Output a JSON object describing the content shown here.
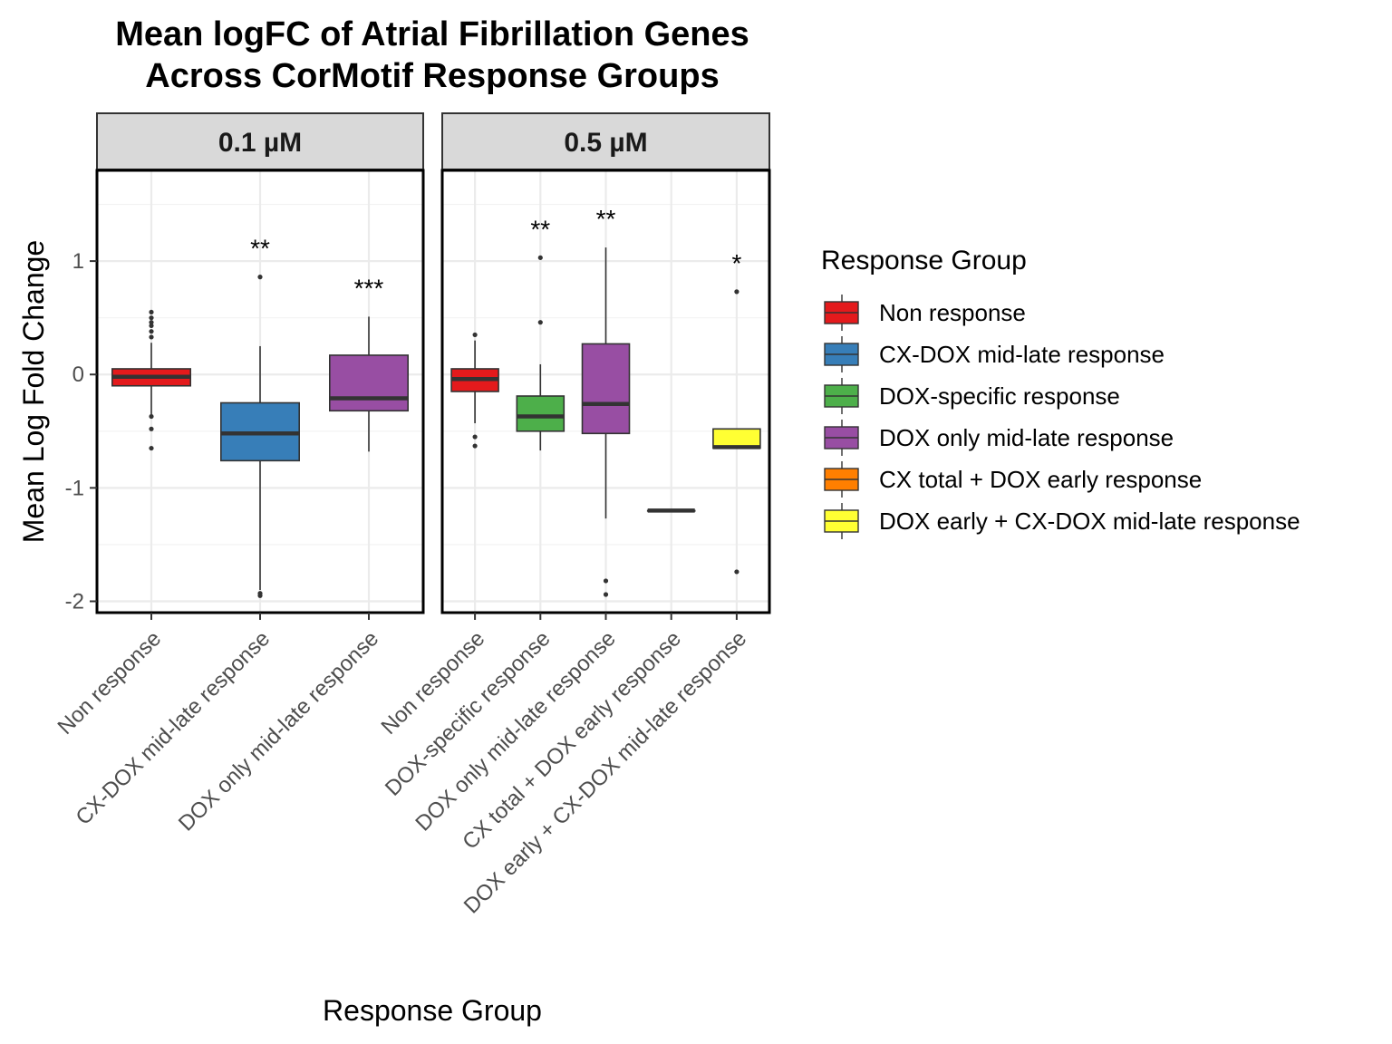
{
  "chart_data": {
    "type": "box",
    "title": "Mean logFC of Atrial Fibrillation Genes\nAcross CorMotif Response Groups",
    "xlabel": "Response Group",
    "ylabel": "Mean Log Fold Change",
    "ylim": [
      -2.1,
      1.8
    ],
    "y_ticks": [
      -2,
      -1,
      0,
      1
    ],
    "grid": true,
    "legend": {
      "title": "Response Group",
      "position": "right",
      "entries": [
        {
          "label": "Non response",
          "color": "#E41A1C"
        },
        {
          "label": "CX-DOX mid-late response",
          "color": "#377EB8"
        },
        {
          "label": "DOX-specific response",
          "color": "#4DAF4A"
        },
        {
          "label": "DOX only mid-late response",
          "color": "#984EA3"
        },
        {
          "label": "CX total + DOX early response",
          "color": "#FF7F00"
        },
        {
          "label": "DOX early + CX-DOX mid-late response",
          "color": "#FFFF33"
        }
      ]
    },
    "facets": [
      {
        "label": "0.1 µM",
        "categories": [
          "Non response",
          "CX-DOX mid-late response",
          "DOX only mid-late response"
        ],
        "boxes": [
          {
            "group": "Non response",
            "color": "#E41A1C",
            "q1": -0.1,
            "median": -0.02,
            "q3": 0.05,
            "whisker_low": -0.35,
            "whisker_high": 0.28,
            "outliers": [
              0.55,
              0.5,
              0.46,
              0.43,
              0.38,
              0.33,
              -0.37,
              -0.48,
              -0.65
            ],
            "sig": ""
          },
          {
            "group": "CX-DOX mid-late response",
            "color": "#377EB8",
            "q1": -0.76,
            "median": -0.52,
            "q3": -0.25,
            "whisker_low": -1.9,
            "whisker_high": 0.25,
            "outliers": [
              0.86,
              -1.93,
              -1.95
            ],
            "sig": "**"
          },
          {
            "group": "DOX only mid-late response",
            "color": "#984EA3",
            "q1": -0.32,
            "median": -0.21,
            "q3": 0.17,
            "whisker_low": -0.68,
            "whisker_high": 0.51,
            "outliers": [],
            "sig": "***"
          }
        ]
      },
      {
        "label": "0.5 µM",
        "categories": [
          "Non response",
          "DOX-specific response",
          "DOX only mid-late response",
          "CX total + DOX early response",
          "DOX early + CX-DOX mid-late response"
        ],
        "boxes": [
          {
            "group": "Non response",
            "color": "#E41A1C",
            "q1": -0.15,
            "median": -0.04,
            "q3": 0.05,
            "whisker_low": -0.43,
            "whisker_high": 0.3,
            "outliers": [
              0.35,
              -0.55,
              -0.63
            ],
            "sig": ""
          },
          {
            "group": "DOX-specific response",
            "color": "#4DAF4A",
            "q1": -0.5,
            "median": -0.37,
            "q3": -0.19,
            "whisker_low": -0.67,
            "whisker_high": 0.09,
            "outliers": [
              1.03,
              0.46
            ],
            "sig": "**"
          },
          {
            "group": "DOX only mid-late response",
            "color": "#984EA3",
            "q1": -0.52,
            "median": -0.26,
            "q3": 0.27,
            "whisker_low": -1.27,
            "whisker_high": 1.12,
            "outliers": [
              -1.82,
              -1.94
            ],
            "sig": "**"
          },
          {
            "group": "CX total + DOX early response",
            "color": "#FF7F00",
            "q1": -1.2,
            "median": -1.2,
            "q3": -1.2,
            "whisker_low": -1.2,
            "whisker_high": -1.2,
            "outliers": [],
            "sig": ""
          },
          {
            "group": "DOX early + CX-DOX mid-late response",
            "color": "#FFFF33",
            "q1": -0.65,
            "median": -0.64,
            "q3": -0.48,
            "whisker_low": -0.65,
            "whisker_high": -0.48,
            "outliers": [
              0.73,
              -1.74
            ],
            "sig": "*"
          }
        ]
      }
    ]
  }
}
